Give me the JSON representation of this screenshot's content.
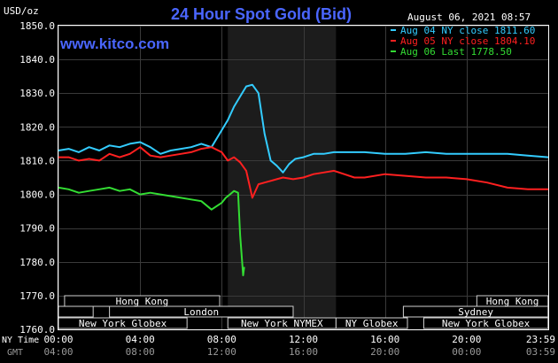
{
  "header": {
    "unit": "USD/oz",
    "title": "24 Hour Spot Gold (Bid)",
    "timestamp": "August 06, 2021 08:57",
    "website": "www.kitco.com"
  },
  "legend": [
    {
      "label": "Aug 04 NY close 1811.60",
      "color": "#33ccff"
    },
    {
      "label": "Aug 05 NY close 1804.10",
      "color": "#ff2020"
    },
    {
      "label": "Aug 06 Last 1778.50",
      "color": "#33dd33"
    }
  ],
  "time_axis": {
    "ny_label": "NY Time",
    "gmt_label": "GMT",
    "ny_ticks": [
      "00:00",
      "04:00",
      "08:00",
      "12:00",
      "16:00",
      "20:00",
      "23:59"
    ],
    "gmt_ticks": [
      "04:00",
      "08:00",
      "12:00",
      "16:00",
      "20:00",
      "00:00",
      "03:59"
    ]
  },
  "sessions": [
    {
      "label": "Hong Kong",
      "start": 0.3,
      "end": 7.9,
      "row": 0
    },
    {
      "label": "Hong Kong",
      "start": 20.5,
      "end": 23.99,
      "row": 0
    },
    {
      "label": "London",
      "start": 2.5,
      "end": 11.5,
      "row": 1
    },
    {
      "label": "Sydney",
      "start": 16.9,
      "end": 23.99,
      "row": 1
    },
    {
      "label": "",
      "start": 0,
      "end": 1.7,
      "row": 1
    },
    {
      "label": "New York Globex",
      "start": 0,
      "end": 6.3,
      "row": 2
    },
    {
      "label": "New York NYMEX",
      "start": 8.3,
      "end": 13.6,
      "row": 2
    },
    {
      "label": "NY Globex",
      "start": 13.6,
      "end": 17.1,
      "row": 2
    },
    {
      "label": "New York Globex",
      "start": 17.9,
      "end": 23.99,
      "row": 2
    }
  ],
  "chart_data": {
    "type": "line",
    "xlim": [
      0,
      24
    ],
    "ylim": [
      1760,
      1850
    ],
    "y_ticks": [
      "1850.0",
      "1840.0",
      "1830.0",
      "1820.0",
      "1810.0",
      "1800.0",
      "1790.0",
      "1780.0",
      "1770.0",
      "1760.0"
    ],
    "shaded_hours": [
      8.3,
      13.6
    ],
    "grid": true,
    "series": [
      {
        "name": "Aug 04 NY close 1811.60",
        "color": "#33ccff",
        "x": [
          0,
          0.5,
          1,
          1.5,
          2,
          2.5,
          3,
          3.5,
          4,
          4.5,
          5,
          5.5,
          6,
          6.5,
          7,
          7.5,
          8,
          8.3,
          8.6,
          8.9,
          9.2,
          9.5,
          9.8,
          10.1,
          10.4,
          10.7,
          11,
          11.3,
          11.6,
          12,
          12.5,
          13,
          13.5,
          14,
          15,
          16,
          17,
          18,
          19,
          20,
          21,
          22,
          23,
          24
        ],
        "y": [
          1813,
          1813.5,
          1812.5,
          1814,
          1813,
          1814.5,
          1814,
          1815,
          1815.5,
          1814,
          1812,
          1813,
          1813.5,
          1814,
          1815,
          1814,
          1819,
          1822,
          1826,
          1829,
          1832,
          1832.5,
          1830,
          1818,
          1810,
          1808.5,
          1806.5,
          1809,
          1810.5,
          1811,
          1812,
          1812,
          1812.5,
          1812.5,
          1812.5,
          1812,
          1812,
          1812.5,
          1812,
          1812,
          1812,
          1812,
          1811.5,
          1811
        ]
      },
      {
        "name": "Aug 05 NY close 1804.10",
        "color": "#ff2020",
        "x": [
          0,
          0.5,
          1,
          1.5,
          2,
          2.5,
          3,
          3.5,
          4,
          4.5,
          5,
          5.5,
          6,
          6.5,
          7,
          7.5,
          8,
          8.3,
          8.6,
          8.9,
          9.2,
          9.5,
          9.8,
          10.1,
          10.4,
          10.7,
          11,
          11.5,
          12,
          12.5,
          13,
          13.5,
          14,
          14.5,
          15,
          16,
          17,
          18,
          19,
          20,
          21,
          22,
          23,
          24
        ],
        "y": [
          1811,
          1811,
          1810,
          1810.5,
          1810,
          1812,
          1811,
          1812,
          1814,
          1811.5,
          1811,
          1811.5,
          1812,
          1812.5,
          1813.5,
          1814,
          1812.5,
          1810,
          1811,
          1809.5,
          1807,
          1799,
          1803,
          1803.5,
          1804,
          1804.5,
          1805,
          1804.5,
          1805,
          1806,
          1806.5,
          1807,
          1806,
          1805,
          1805,
          1806,
          1805.5,
          1805,
          1805,
          1804.5,
          1803.5,
          1802,
          1801.5,
          1801.5
        ]
      },
      {
        "name": "Aug 06 Last 1778.50",
        "color": "#33dd33",
        "x": [
          0,
          0.5,
          1,
          1.5,
          2,
          2.5,
          3,
          3.5,
          4,
          4.5,
          5,
          5.5,
          6,
          6.5,
          7,
          7.5,
          8,
          8.2,
          8.4,
          8.6,
          8.8,
          8.9,
          9,
          9.05,
          9.1
        ],
        "y": [
          1802,
          1801.5,
          1800.5,
          1801,
          1801.5,
          1802,
          1801,
          1801.5,
          1800,
          1800.5,
          1800,
          1799.5,
          1799,
          1798.5,
          1798,
          1795.5,
          1797.5,
          1799,
          1800,
          1801,
          1800.5,
          1788,
          1780,
          1776,
          1778.5
        ]
      }
    ]
  }
}
